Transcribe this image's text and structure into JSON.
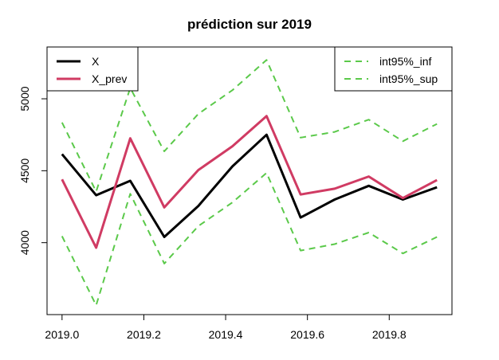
{
  "chart_data": {
    "type": "line",
    "title": "prédiction sur 2019",
    "xlabel": "",
    "ylabel": "",
    "xlim": [
      2019.0,
      2019.9167
    ],
    "ylim": [
      3530,
      5330
    ],
    "x_ticks": [
      2019.0,
      2019.2,
      2019.4,
      2019.6,
      2019.8
    ],
    "x_tick_labels": [
      "2019.0",
      "2019.2",
      "2019.4",
      "2019.6",
      "2019.8"
    ],
    "y_ticks": [
      4000,
      4500,
      5000
    ],
    "y_tick_labels": [
      "4000",
      "4500",
      "5000"
    ],
    "grid": false,
    "x": [
      2019.0,
      2019.0833,
      2019.1667,
      2019.25,
      2019.3333,
      2019.4167,
      2019.5,
      2019.5833,
      2019.6667,
      2019.75,
      2019.8333,
      2019.9167
    ],
    "series": [
      {
        "name": "X",
        "color": "#000000",
        "dash": "solid",
        "values": [
          4615,
          4330,
          4430,
          4040,
          4255,
          4530,
          4750,
          4175,
          4300,
          4395,
          4300,
          4385
        ]
      },
      {
        "name": "X_prev",
        "color": "#d03b63",
        "dash": "solid",
        "values": [
          4440,
          3965,
          4725,
          4245,
          4505,
          4670,
          4880,
          4335,
          4375,
          4460,
          4310,
          4435
        ]
      },
      {
        "name": "int95%_inf",
        "color": "#5bc94a",
        "dash": "dashed",
        "values": [
          4045,
          3565,
          4340,
          3855,
          4115,
          4280,
          4485,
          3945,
          3990,
          4070,
          3925,
          4040
        ]
      },
      {
        "name": "int95%_sup",
        "color": "#5bc94a",
        "dash": "dashed",
        "values": [
          4835,
          4355,
          5075,
          4635,
          4895,
          5060,
          5270,
          4730,
          4770,
          4855,
          4705,
          4825
        ]
      }
    ],
    "legends": [
      {
        "placement": "top-left",
        "entries": [
          "X",
          "X_prev"
        ]
      },
      {
        "placement": "top-right",
        "entries": [
          "int95%_inf",
          "int95%_sup"
        ]
      }
    ]
  }
}
